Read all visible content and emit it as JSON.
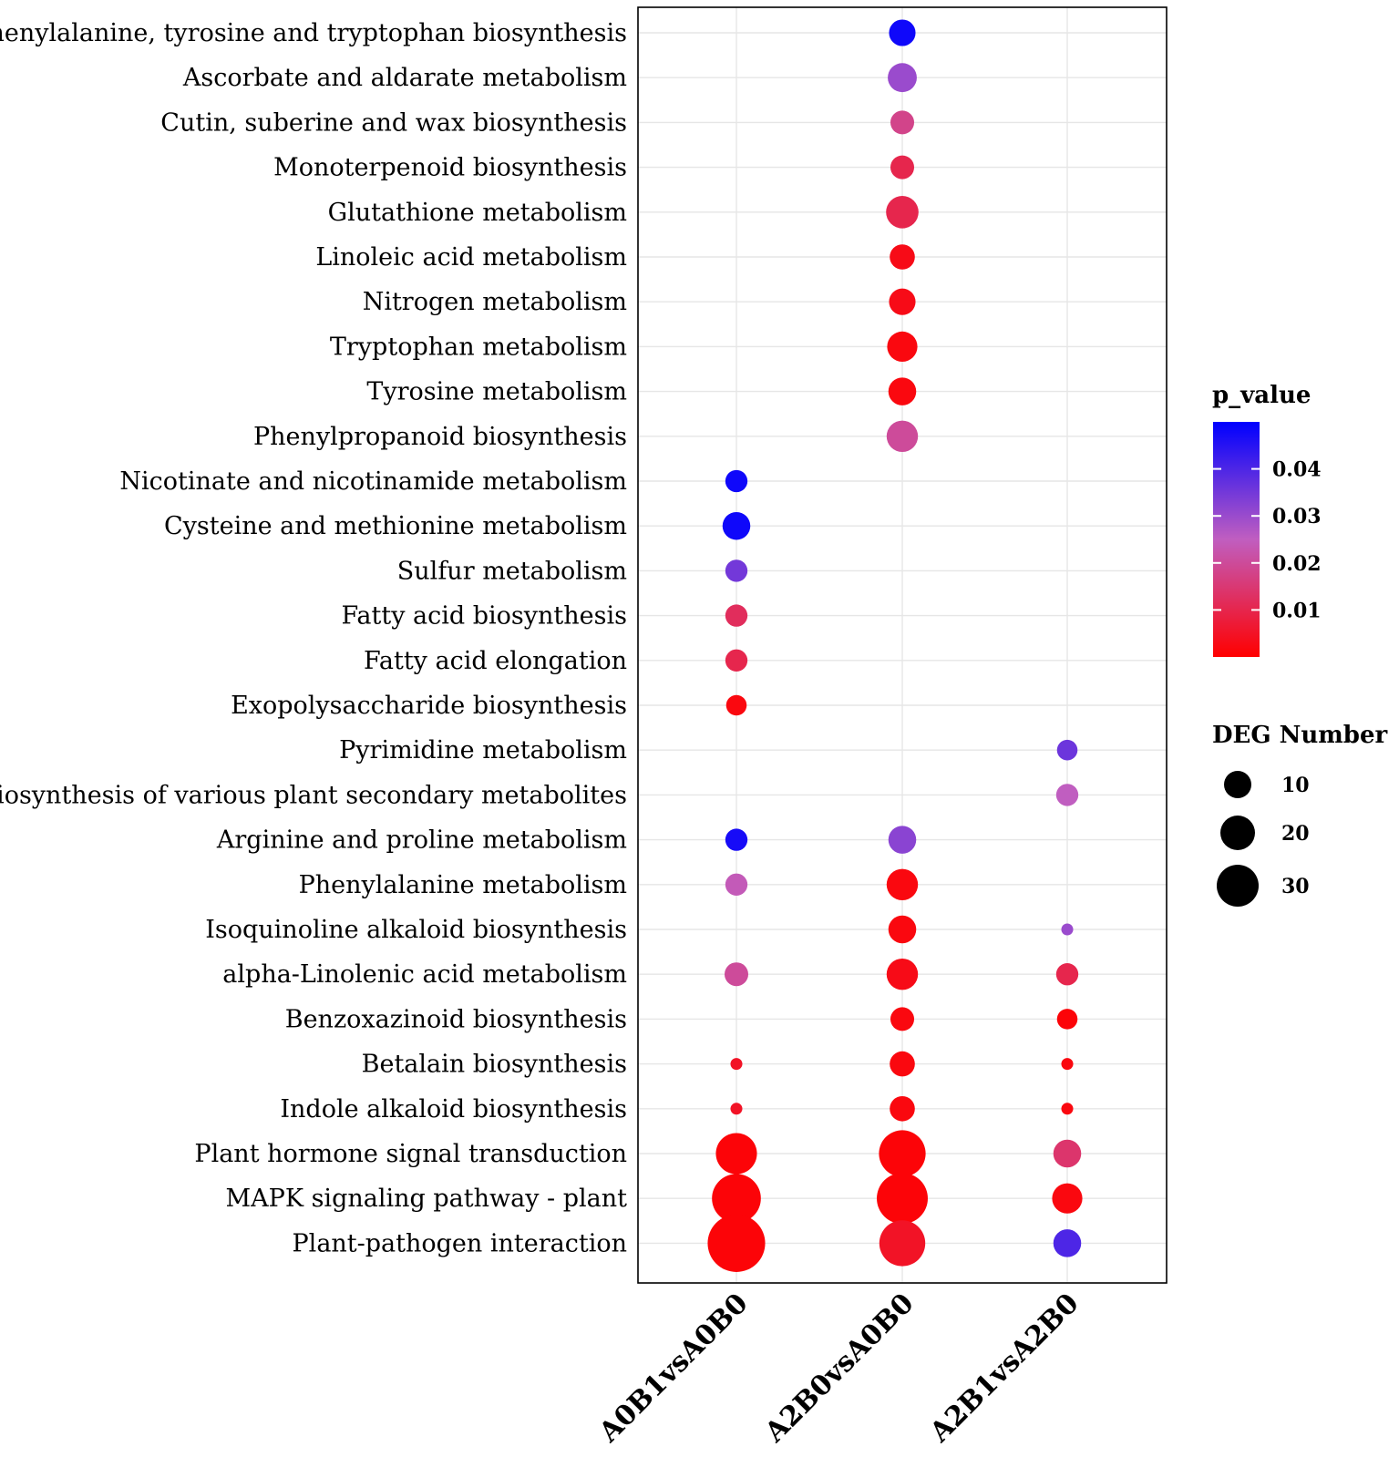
{
  "chart_data": {
    "type": "scatter",
    "subtype": "bubble",
    "title": "",
    "xlabel": "",
    "ylabel": "",
    "x_categories": [
      "A0B1vsA0B0",
      "A2B0vsA0B0",
      "A2B1vsA2B0"
    ],
    "y_categories": [
      "Phenylalanine, tyrosine and tryptophan biosynthesis",
      "Ascorbate and aldarate metabolism",
      "Cutin, suberine and wax biosynthesis",
      "Monoterpenoid biosynthesis",
      "Glutathione metabolism",
      "Linoleic acid metabolism",
      "Nitrogen metabolism",
      "Tryptophan metabolism",
      "Tyrosine metabolism",
      "Phenylpropanoid biosynthesis",
      "Nicotinate and nicotinamide metabolism",
      "Cysteine and methionine metabolism",
      "Sulfur metabolism",
      "Fatty acid biosynthesis",
      "Fatty acid elongation",
      "Exopolysaccharide biosynthesis",
      "Pyrimidine metabolism",
      "Biosynthesis of various plant secondary metabolites",
      "Arginine and proline metabolism",
      "Phenylalanine metabolism",
      "Isoquinoline alkaloid biosynthesis",
      "alpha-Linolenic acid metabolism",
      "Benzoxazinoid biosynthesis",
      "Betalain biosynthesis",
      "Indole alkaloid biosynthesis",
      "Plant hormone signal transduction",
      "MAPK signaling pathway - plant",
      "Plant-pathogen interaction"
    ],
    "points": [
      {
        "pathway": "Phenylalanine, tyrosine and tryptophan biosynthesis",
        "comparison": "A2B0vsA0B0",
        "deg_number": 10,
        "p_value": 0.048
      },
      {
        "pathway": "Ascorbate and aldarate metabolism",
        "comparison": "A2B0vsA0B0",
        "deg_number": 12,
        "p_value": 0.03
      },
      {
        "pathway": "Cutin, suberine and wax biosynthesis",
        "comparison": "A2B0vsA0B0",
        "deg_number": 8,
        "p_value": 0.018
      },
      {
        "pathway": "Monoterpenoid biosynthesis",
        "comparison": "A2B0vsA0B0",
        "deg_number": 8,
        "p_value": 0.01
      },
      {
        "pathway": "Glutathione metabolism",
        "comparison": "A2B0vsA0B0",
        "deg_number": 15,
        "p_value": 0.01
      },
      {
        "pathway": "Linoleic acid metabolism",
        "comparison": "A2B0vsA0B0",
        "deg_number": 9,
        "p_value": 0.003
      },
      {
        "pathway": "Nitrogen metabolism",
        "comparison": "A2B0vsA0B0",
        "deg_number": 10,
        "p_value": 0.003
      },
      {
        "pathway": "Tryptophan metabolism",
        "comparison": "A2B0vsA0B0",
        "deg_number": 13,
        "p_value": 0.002
      },
      {
        "pathway": "Tyrosine metabolism",
        "comparison": "A2B0vsA0B0",
        "deg_number": 11,
        "p_value": 0.002
      },
      {
        "pathway": "Phenylpropanoid biosynthesis",
        "comparison": "A2B0vsA0B0",
        "deg_number": 14,
        "p_value": 0.02
      },
      {
        "pathway": "Nicotinate and nicotinamide metabolism",
        "comparison": "A0B1vsA0B0",
        "deg_number": 7,
        "p_value": 0.048
      },
      {
        "pathway": "Cysteine and methionine metabolism",
        "comparison": "A0B1vsA0B0",
        "deg_number": 11,
        "p_value": 0.048
      },
      {
        "pathway": "Sulfur metabolism",
        "comparison": "A0B1vsA0B0",
        "deg_number": 7,
        "p_value": 0.035
      },
      {
        "pathway": "Fatty acid biosynthesis",
        "comparison": "A0B1vsA0B0",
        "deg_number": 7,
        "p_value": 0.012
      },
      {
        "pathway": "Fatty acid elongation",
        "comparison": "A0B1vsA0B0",
        "deg_number": 7,
        "p_value": 0.01
      },
      {
        "pathway": "Exopolysaccharide biosynthesis",
        "comparison": "A0B1vsA0B0",
        "deg_number": 6,
        "p_value": 0.002
      },
      {
        "pathway": "Pyrimidine metabolism",
        "comparison": "A2B1vsA2B0",
        "deg_number": 6,
        "p_value": 0.036
      },
      {
        "pathway": "Biosynthesis of various plant secondary metabolites",
        "comparison": "A2B1vsA2B0",
        "deg_number": 7,
        "p_value": 0.025
      },
      {
        "pathway": "Arginine and proline metabolism",
        "comparison": "A0B1vsA0B0",
        "deg_number": 7,
        "p_value": 0.047
      },
      {
        "pathway": "Arginine and proline metabolism",
        "comparison": "A2B0vsA0B0",
        "deg_number": 11,
        "p_value": 0.032
      },
      {
        "pathway": "Phenylalanine metabolism",
        "comparison": "A0B1vsA0B0",
        "deg_number": 7,
        "p_value": 0.024
      },
      {
        "pathway": "Phenylalanine metabolism",
        "comparison": "A2B0vsA0B0",
        "deg_number": 14,
        "p_value": 0.002
      },
      {
        "pathway": "Isoquinoline alkaloid biosynthesis",
        "comparison": "A2B0vsA0B0",
        "deg_number": 11,
        "p_value": 0.002
      },
      {
        "pathway": "Isoquinoline alkaloid biosynthesis",
        "comparison": "A2B1vsA2B0",
        "deg_number": 2,
        "p_value": 0.03
      },
      {
        "pathway": "alpha-Linolenic acid metabolism",
        "comparison": "A0B1vsA0B0",
        "deg_number": 8,
        "p_value": 0.02
      },
      {
        "pathway": "alpha-Linolenic acid metabolism",
        "comparison": "A2B0vsA0B0",
        "deg_number": 14,
        "p_value": 0.003
      },
      {
        "pathway": "alpha-Linolenic acid metabolism",
        "comparison": "A2B1vsA2B0",
        "deg_number": 7,
        "p_value": 0.01
      },
      {
        "pathway": "Benzoxazinoid biosynthesis",
        "comparison": "A2B0vsA0B0",
        "deg_number": 8,
        "p_value": 0.002
      },
      {
        "pathway": "Benzoxazinoid biosynthesis",
        "comparison": "A2B1vsA2B0",
        "deg_number": 6,
        "p_value": 0.001
      },
      {
        "pathway": "Betalain biosynthesis",
        "comparison": "A0B1vsA0B0",
        "deg_number": 2,
        "p_value": 0.005
      },
      {
        "pathway": "Betalain biosynthesis",
        "comparison": "A2B0vsA0B0",
        "deg_number": 9,
        "p_value": 0.002
      },
      {
        "pathway": "Betalain biosynthesis",
        "comparison": "A2B1vsA2B0",
        "deg_number": 2,
        "p_value": 0.002
      },
      {
        "pathway": "Indole alkaloid biosynthesis",
        "comparison": "A0B1vsA0B0",
        "deg_number": 2,
        "p_value": 0.005
      },
      {
        "pathway": "Indole alkaloid biosynthesis",
        "comparison": "A2B0vsA0B0",
        "deg_number": 9,
        "p_value": 0.002
      },
      {
        "pathway": "Indole alkaloid biosynthesis",
        "comparison": "A2B1vsA2B0",
        "deg_number": 2,
        "p_value": 0.002
      },
      {
        "pathway": "Plant hormone signal transduction",
        "comparison": "A0B1vsA0B0",
        "deg_number": 24,
        "p_value": 0.001
      },
      {
        "pathway": "Plant hormone signal transduction",
        "comparison": "A2B0vsA0B0",
        "deg_number": 31,
        "p_value": 0.001
      },
      {
        "pathway": "Plant hormone signal transduction",
        "comparison": "A2B1vsA2B0",
        "deg_number": 11,
        "p_value": 0.014
      },
      {
        "pathway": "MAPK signaling pathway - plant",
        "comparison": "A0B1vsA0B0",
        "deg_number": 34,
        "p_value": 0.001
      },
      {
        "pathway": "MAPK signaling pathway - plant",
        "comparison": "A2B0vsA0B0",
        "deg_number": 37,
        "p_value": 0.001
      },
      {
        "pathway": "MAPK signaling pathway - plant",
        "comparison": "A2B1vsA2B0",
        "deg_number": 13,
        "p_value": 0.002
      },
      {
        "pathway": "Plant-pathogen interaction",
        "comparison": "A0B1vsA0B0",
        "deg_number": 47,
        "p_value": 0.001
      },
      {
        "pathway": "Plant-pathogen interaction",
        "comparison": "A2B0vsA0B0",
        "deg_number": 30,
        "p_value": 0.005
      },
      {
        "pathway": "Plant-pathogen interaction",
        "comparison": "A2B1vsA2B0",
        "deg_number": 11,
        "p_value": 0.04
      }
    ],
    "color_legend": {
      "title": "p_value",
      "ticks": [
        0.04,
        0.03,
        0.02,
        0.01
      ],
      "tick_labels": [
        "0.04",
        "0.03",
        "0.02",
        "0.01"
      ],
      "range": [
        0.0,
        0.05
      ],
      "low_color": "#ff0000",
      "high_color": "#0000ff"
    },
    "size_legend": {
      "title": "DEG Number",
      "values": [
        10,
        20,
        30
      ],
      "labels": [
        "10",
        "20",
        "30"
      ]
    },
    "grid": true,
    "legend_position": "right"
  }
}
